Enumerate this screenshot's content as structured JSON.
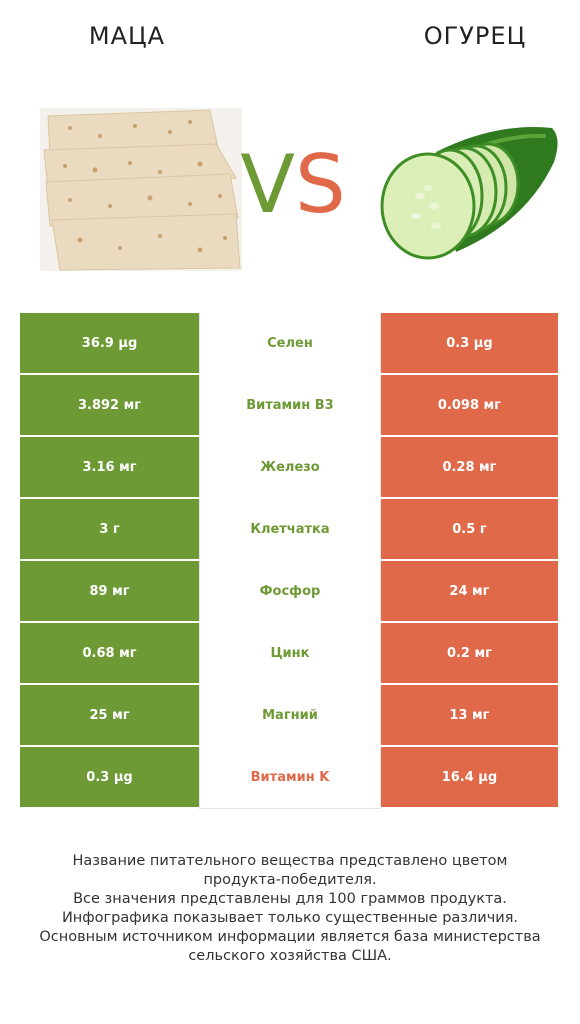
{
  "header": {
    "left_food": "МАЦА",
    "right_food": "ОГУРЕЦ",
    "vs_v": "V",
    "vs_s": "S"
  },
  "colors": {
    "left_winner": "#6e9a36",
    "right_winner": "#e0694a"
  },
  "rows": [
    {
      "left": "36.9 µg",
      "name": "Селен",
      "right": "0.3 µg",
      "winner": "left"
    },
    {
      "left": "3.892 мг",
      "name": "Витамин B3",
      "right": "0.098 мг",
      "winner": "left"
    },
    {
      "left": "3.16 мг",
      "name": "Железо",
      "right": "0.28 мг",
      "winner": "left"
    },
    {
      "left": "3 г",
      "name": "Клетчатка",
      "right": "0.5 г",
      "winner": "left"
    },
    {
      "left": "89 мг",
      "name": "Фосфор",
      "right": "24 мг",
      "winner": "left"
    },
    {
      "left": "0.68 мг",
      "name": "Цинк",
      "right": "0.2 мг",
      "winner": "left"
    },
    {
      "left": "25 мг",
      "name": "Магний",
      "right": "13 мг",
      "winner": "left"
    },
    {
      "left": "0.3 µg",
      "name": "Витамин K",
      "right": "16.4 µg",
      "winner": "right"
    }
  ],
  "footnote": {
    "line1": "Название питательного вещества представлено цветом",
    "line2": "продукта-победителя.",
    "line3": "Все значения представлены для 100 граммов продукта.",
    "line4": "Инфографика показывает только существенные различия.",
    "line5": "Основным источником информации является база министерства",
    "line6": "сельского хозяйства США."
  }
}
